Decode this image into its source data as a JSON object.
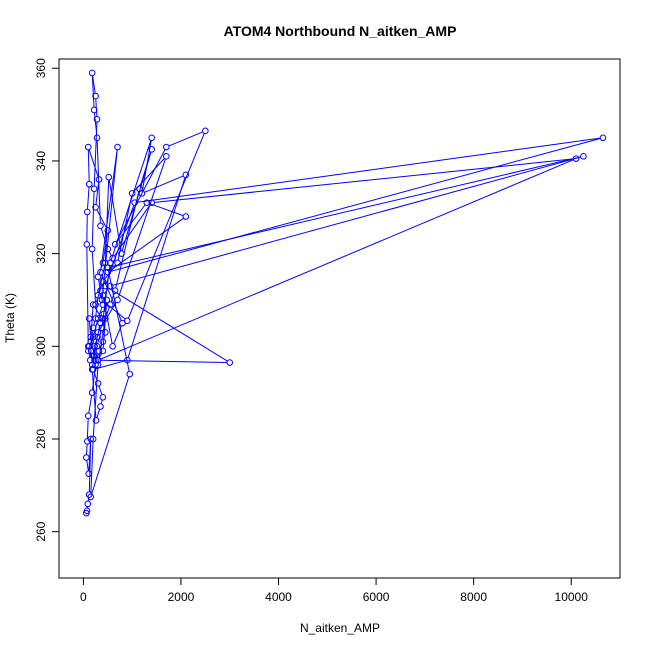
{
  "chart_data": {
    "type": "line",
    "title": "ATOM4 Northbound N_aitken_AMP",
    "xlabel": "N_aitken_AMP",
    "ylabel": "Theta (K)",
    "xlim": [
      -500,
      11000
    ],
    "ylim": [
      250,
      362
    ],
    "xticks": [
      0,
      2000,
      4000,
      6000,
      8000,
      10000
    ],
    "yticks": [
      260,
      280,
      300,
      320,
      340,
      360
    ],
    "grid": false,
    "legend": "none",
    "series": [
      {
        "color": "#0000ff",
        "marker": "open-circle",
        "points": [
          [
            60,
            264
          ],
          [
            75,
            264.5
          ],
          [
            90,
            266
          ],
          [
            120,
            268
          ],
          [
            150,
            280
          ],
          [
            110,
            272.5
          ],
          [
            60,
            276
          ],
          [
            80,
            279.5
          ],
          [
            100,
            285
          ],
          [
            180,
            290
          ],
          [
            250,
            296
          ],
          [
            320,
            299
          ],
          [
            400,
            301
          ],
          [
            450,
            303
          ],
          [
            380,
            306
          ],
          [
            200,
            309
          ],
          [
            150,
            301
          ],
          [
            100,
            299
          ],
          [
            120,
            300
          ],
          [
            200,
            302
          ],
          [
            300,
            306
          ],
          [
            400,
            309
          ],
          [
            350,
            312
          ],
          [
            300,
            315
          ],
          [
            400,
            318
          ],
          [
            500,
            325
          ],
          [
            250,
            330
          ],
          [
            320,
            336
          ],
          [
            100,
            343
          ],
          [
            120,
            335
          ],
          [
            80,
            329
          ],
          [
            70,
            322
          ],
          [
            100,
            300
          ],
          [
            140,
            297
          ],
          [
            200,
            298
          ],
          [
            280,
            300
          ],
          [
            380,
            304
          ],
          [
            550,
            318
          ],
          [
            1400,
            345
          ],
          [
            1200,
            333
          ],
          [
            2100,
            337
          ],
          [
            900,
            297
          ],
          [
            200,
            295
          ],
          [
            300,
            292
          ],
          [
            400,
            289
          ],
          [
            350,
            287
          ],
          [
            260,
            284
          ],
          [
            180,
            295
          ],
          [
            300,
            303
          ],
          [
            700,
            310
          ],
          [
            1700,
            341
          ],
          [
            1000,
            333
          ],
          [
            700,
            318
          ],
          [
            400,
            314
          ],
          [
            250,
            309
          ],
          [
            180,
            321
          ],
          [
            220,
            334
          ],
          [
            280,
            349
          ],
          [
            250,
            354
          ],
          [
            180,
            359
          ],
          [
            220,
            351
          ],
          [
            280,
            345
          ],
          [
            350,
            326
          ],
          [
            500,
            321
          ],
          [
            600,
            319
          ],
          [
            1400,
            331
          ],
          [
            10100,
            340.5
          ],
          [
            300,
            297
          ],
          [
            3000,
            296.5
          ],
          [
            450,
            313
          ],
          [
            1050,
            331
          ],
          [
            10650,
            345
          ],
          [
            500,
            316
          ],
          [
            2100,
            328
          ],
          [
            1300,
            331
          ],
          [
            650,
            322
          ],
          [
            1700,
            343
          ],
          [
            2500,
            346.5
          ],
          [
            900,
            305.5
          ],
          [
            380,
            310
          ],
          [
            700,
            343
          ],
          [
            350,
            316
          ],
          [
            800,
            305
          ],
          [
            600,
            300
          ],
          [
            400,
            311
          ],
          [
            550,
            313
          ],
          [
            10250,
            341
          ],
          [
            500,
            317
          ],
          [
            950,
            294
          ],
          [
            150,
            267.5
          ],
          [
            200,
            280
          ],
          [
            300,
            296
          ],
          [
            450,
            306
          ],
          [
            550,
            309
          ],
          [
            650,
            312
          ],
          [
            1150,
            334
          ],
          [
            1400,
            342.5
          ],
          [
            780,
            320
          ],
          [
            520,
            336.5
          ],
          [
            450,
            318
          ],
          [
            300,
            311
          ],
          [
            250,
            306
          ],
          [
            200,
            304
          ],
          [
            160,
            299
          ],
          [
            180,
            296
          ],
          [
            230,
            300
          ],
          [
            290,
            302
          ],
          [
            350,
            305
          ],
          [
            420,
            307
          ],
          [
            480,
            310
          ],
          [
            400,
            299
          ],
          [
            300,
            297
          ],
          [
            220,
            298
          ],
          [
            150,
            302
          ],
          [
            120,
            306
          ]
        ]
      }
    ]
  }
}
